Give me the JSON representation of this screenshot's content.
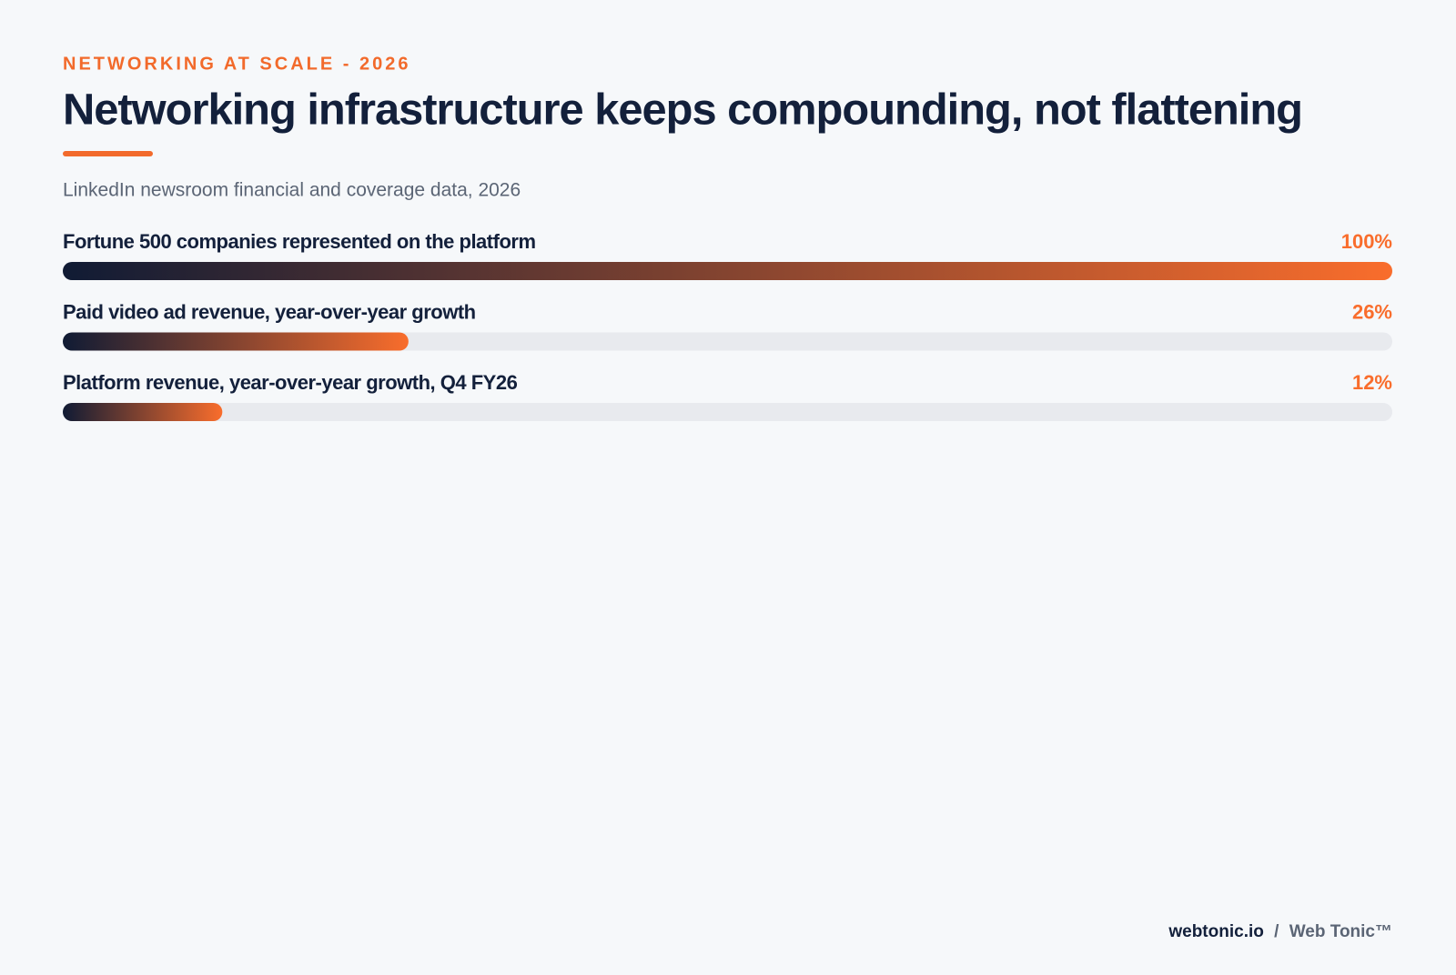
{
  "chart_data": {
    "type": "bar",
    "orientation": "horizontal",
    "eyebrow": "NETWORKING AT SCALE - 2026",
    "title": "Networking infrastructure keeps compounding, not flattening",
    "subtitle": "LinkedIn newsroom financial and coverage data, 2026",
    "categories": [
      "Fortune 500 companies represented on the platform",
      "Paid video ad revenue, year-over-year growth",
      "Platform revenue, year-over-year growth, Q4 FY26"
    ],
    "values": [
      100,
      26,
      12
    ],
    "value_labels": [
      "100%",
      "26%",
      "12%"
    ],
    "xlim": [
      0,
      100
    ],
    "colors": [
      "#101b34",
      "#f96d2c"
    ],
    "track_color": "#e8eaee",
    "footer": {
      "site": "webtonic.io",
      "separator": "/",
      "brand": "Web Tonic™"
    }
  }
}
